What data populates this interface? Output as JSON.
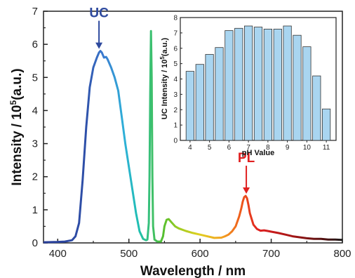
{
  "chart_data": [
    {
      "type": "line",
      "xlabel": "Wavelength / nm",
      "ylabel_prefix": "Intensity / 10",
      "ylabel_sup": "5",
      "ylabel_suffix": "(a.u.)",
      "xlim": [
        380,
        800
      ],
      "ylim": [
        0,
        7
      ],
      "xticks": [
        400,
        500,
        600,
        700,
        800
      ],
      "yticks": [
        0,
        1,
        2,
        3,
        4,
        5,
        6,
        7
      ],
      "x": [
        380,
        400,
        410,
        420,
        425,
        430,
        435,
        440,
        445,
        450,
        455,
        458,
        460,
        462,
        465,
        468,
        470,
        475,
        480,
        485,
        490,
        495,
        500,
        505,
        510,
        515,
        520,
        524,
        526,
        528,
        529,
        530,
        531,
        532,
        533,
        534,
        536,
        540,
        545,
        548,
        550,
        553,
        556,
        560,
        565,
        570,
        580,
        590,
        600,
        610,
        620,
        630,
        635,
        640,
        645,
        650,
        655,
        658,
        660,
        662,
        664,
        666,
        668,
        670,
        675,
        680,
        685,
        690,
        695,
        700,
        710,
        720,
        730,
        740,
        750,
        760,
        770,
        780,
        790,
        800
      ],
      "y": [
        0.02,
        0.03,
        0.04,
        0.08,
        0.2,
        0.6,
        1.9,
        3.5,
        4.7,
        5.3,
        5.6,
        5.75,
        5.8,
        5.75,
        5.6,
        5.62,
        5.55,
        5.3,
        5.0,
        4.6,
        3.8,
        3.0,
        2.3,
        1.6,
        0.9,
        0.35,
        0.12,
        0.08,
        0.1,
        0.6,
        2.0,
        4.5,
        6.4,
        5.0,
        2.0,
        0.5,
        0.1,
        0.04,
        0.04,
        0.2,
        0.5,
        0.7,
        0.72,
        0.62,
        0.5,
        0.44,
        0.36,
        0.3,
        0.25,
        0.2,
        0.15,
        0.16,
        0.2,
        0.25,
        0.35,
        0.5,
        0.8,
        1.05,
        1.25,
        1.38,
        1.42,
        1.35,
        1.15,
        0.9,
        0.55,
        0.42,
        0.37,
        0.38,
        0.36,
        0.34,
        0.3,
        0.25,
        0.2,
        0.17,
        0.14,
        0.12,
        0.12,
        0.1,
        0.1,
        0.09
      ],
      "annotations": [
        {
          "text": "UC",
          "x": 458,
          "y": 5.8,
          "color": "#2e4a9e"
        },
        {
          "text": "PL",
          "x": 665,
          "y": 1.42,
          "color": "#e02020"
        }
      ]
    },
    {
      "type": "bar",
      "xlabel": "pH Value",
      "ylabel_prefix": "UC Intensity / 10",
      "ylabel_sup": "5",
      "ylabel_suffix": "(a.u.)",
      "ylim": [
        0,
        8
      ],
      "xlim": [
        3.5,
        11.5
      ],
      "yticks": [
        0,
        1,
        2,
        3,
        4,
        5,
        6,
        7,
        8
      ],
      "xticks": [
        4,
        5,
        6,
        7,
        8,
        9,
        10,
        11
      ],
      "x": [
        4,
        4.5,
        5,
        5.5,
        6,
        6.5,
        7,
        7.5,
        8,
        8.5,
        9,
        9.5,
        10,
        10.5,
        11
      ],
      "values": [
        4.5,
        4.95,
        5.6,
        6.05,
        7.15,
        7.3,
        7.45,
        7.38,
        7.25,
        7.25,
        7.45,
        6.85,
        6.1,
        4.2,
        2.05
      ],
      "bar_color": "#a9d5f0",
      "bar_edge": "#333333"
    }
  ]
}
